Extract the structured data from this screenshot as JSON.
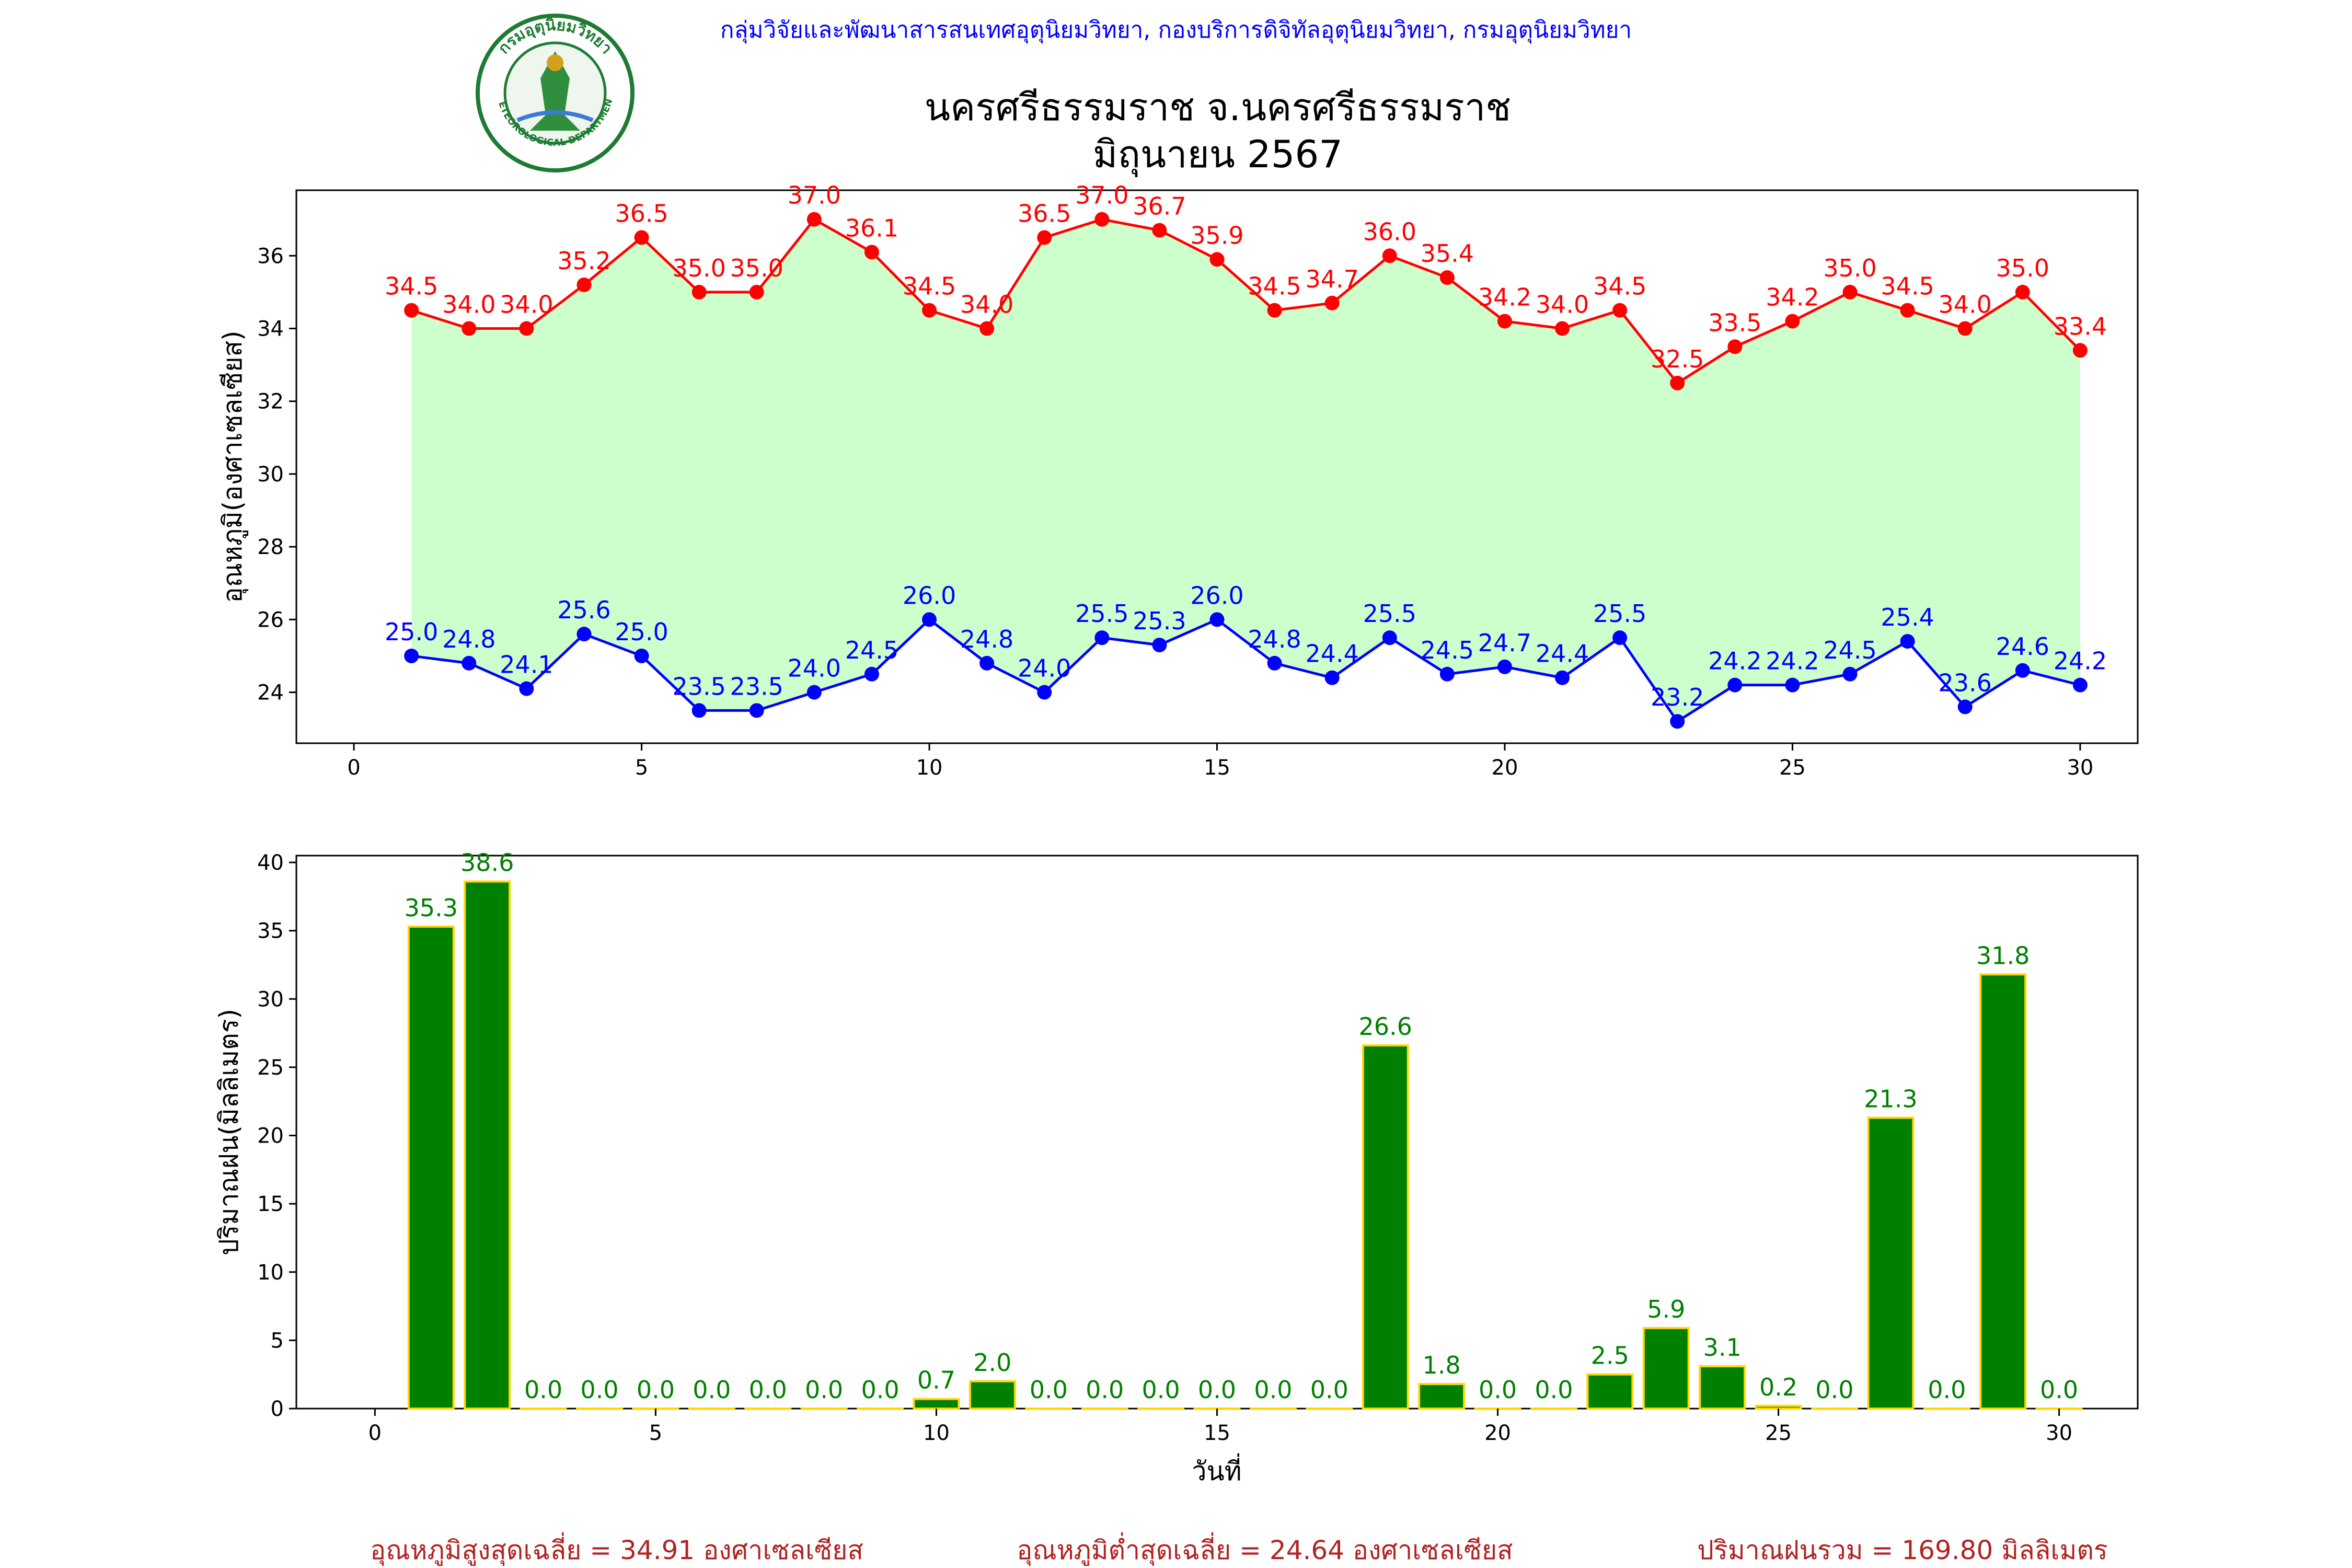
{
  "header": {
    "agency_line": "กลุ่มวิจัยและพัฒนาสารสนเทศอุตุนิยมวิทยา, กองบริการดิจิทัลอุตุนิยมวิทยา, กรมอุตุนิยมวิทยา",
    "title": "นครศรีธรรมราช จ.นครศรีธรรมราช",
    "subtitle": "มิถุนายน 2567"
  },
  "logo": {
    "text_top": "กรมอุตุนิยมวิทยา",
    "text_bottom": "METEOROLOGICAL DEPARTMENT"
  },
  "colors": {
    "max_line": "#ff0000",
    "min_line": "#0000ff",
    "range_fill": "#ccffcc",
    "rain_bar": "#008000",
    "rain_edge": "#ffd700",
    "rain_label": "#008000",
    "agency_text": "#0000ff",
    "summary_text": "#b22222",
    "logo_green": "#1e7b34"
  },
  "chart_data": [
    {
      "type": "line",
      "ylabel": "อุณหภูมิ(องศาเซลเซียส)",
      "xlabel": "",
      "xlim": [
        -1,
        31
      ],
      "ylim": [
        22.6,
        37.8
      ],
      "xticks": [
        0,
        5,
        10,
        15,
        20,
        25,
        30
      ],
      "yticks": [
        24,
        26,
        28,
        30,
        32,
        34,
        36
      ],
      "x": [
        1,
        2,
        3,
        4,
        5,
        6,
        7,
        8,
        9,
        10,
        11,
        12,
        13,
        14,
        15,
        16,
        17,
        18,
        19,
        20,
        21,
        22,
        23,
        24,
        25,
        26,
        27,
        28,
        29,
        30
      ],
      "series": [
        {
          "key": "max",
          "values": [
            34.5,
            34.0,
            34.0,
            35.2,
            36.5,
            35.0,
            35.0,
            37.0,
            36.1,
            34.5,
            34.0,
            36.5,
            37.0,
            36.7,
            35.9,
            34.5,
            34.7,
            36.0,
            35.4,
            34.2,
            34.0,
            34.5,
            32.5,
            33.5,
            34.2,
            35.0,
            34.5,
            34.0,
            35.0,
            33.4
          ]
        },
        {
          "key": "min",
          "values": [
            25.0,
            24.8,
            24.1,
            25.6,
            25.0,
            23.5,
            23.5,
            24.0,
            24.5,
            26.0,
            24.8,
            24.0,
            25.5,
            25.3,
            26.0,
            24.8,
            24.4,
            25.5,
            24.5,
            24.7,
            24.4,
            25.5,
            23.2,
            24.2,
            24.2,
            24.5,
            25.4,
            23.6,
            24.6,
            24.2
          ]
        }
      ],
      "grid": false
    },
    {
      "type": "bar",
      "ylabel": "ปริมาณฝน(มิลลิเมตร)",
      "xlabel": "วันที่",
      "xlim": [
        -1.4,
        31.4
      ],
      "ylim": [
        0,
        40.5
      ],
      "xticks": [
        0,
        5,
        10,
        15,
        20,
        25,
        30
      ],
      "yticks": [
        0,
        5,
        10,
        15,
        20,
        25,
        30,
        35,
        40
      ],
      "x": [
        1,
        2,
        3,
        4,
        5,
        6,
        7,
        8,
        9,
        10,
        11,
        12,
        13,
        14,
        15,
        16,
        17,
        18,
        19,
        20,
        21,
        22,
        23,
        24,
        25,
        26,
        27,
        28,
        29,
        30
      ],
      "values": [
        35.3,
        38.6,
        0.0,
        0.0,
        0.0,
        0.0,
        0.0,
        0.0,
        0.0,
        0.7,
        2.0,
        0.0,
        0.0,
        0.0,
        0.0,
        0.0,
        0.0,
        26.6,
        1.8,
        0.0,
        0.0,
        2.5,
        5.9,
        3.1,
        0.2,
        0.0,
        21.3,
        0.0,
        31.8,
        0.0
      ],
      "grid": false
    }
  ],
  "summary": {
    "max_avg": "อุณหภูมิสูงสุดเฉลี่ย = 34.91 องศาเซลเซียส",
    "min_avg": "อุณหภูมิต่ำสุดเฉลี่ย = 24.64 องศาเซลเซียส",
    "rain_total": "ปริมาณฝนรวม = 169.80 มิลลิเมตร"
  }
}
